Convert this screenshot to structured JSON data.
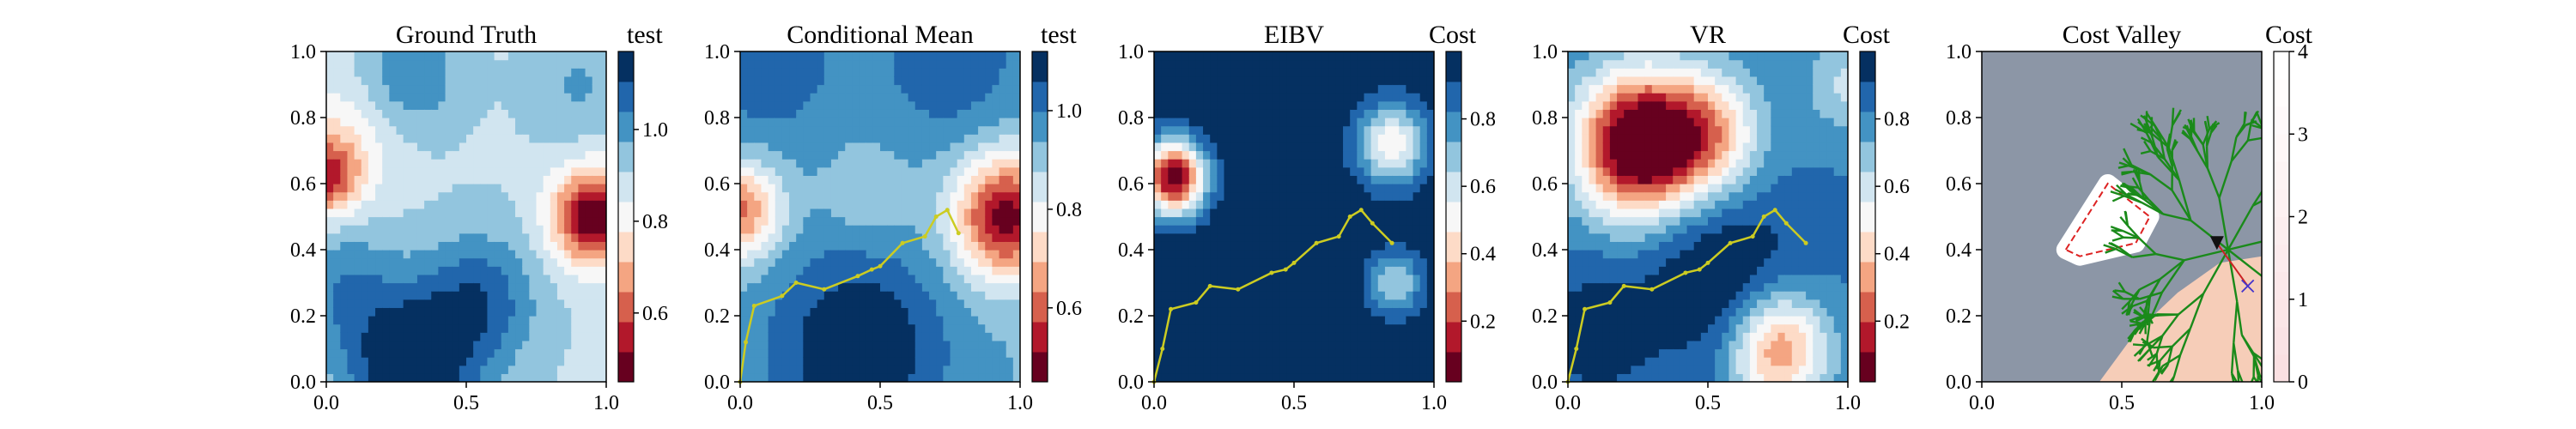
{
  "colors": {
    "diverging_scale": [
      "#67001f",
      "#b2182b",
      "#d6604d",
      "#f4a582",
      "#fddbc7",
      "#f7f7f7",
      "#d1e5f0",
      "#92c5de",
      "#4393c3",
      "#2166ac",
      "#053061"
    ],
    "path_yellow": "#cccc22",
    "tree_green": "#1a8a1a",
    "obstacle_red": "#dd2222",
    "valley_grey": "#8c96a6",
    "valley_peach": "#f6cdb8",
    "heading_marker": "#111111",
    "target_marker": "#4433cc",
    "connector_red": "#cc2222"
  },
  "chart_data": [
    {
      "type": "heatmap",
      "title": "Ground Truth",
      "colorbar_label": "test",
      "colorbar_ticks": [
        "0.6",
        "0.8",
        "1.0"
      ],
      "colorbar_tick_values": [
        0.6,
        0.8,
        1.0
      ],
      "colorbar_range": [
        0.45,
        1.17
      ],
      "x_ticks": [
        "0.0",
        "0.5",
        "1.0"
      ],
      "y_ticks": [
        "0.0",
        "0.2",
        "0.4",
        "0.6",
        "0.8",
        "1.0"
      ],
      "xlim": [
        0,
        1
      ],
      "ylim": [
        0,
        1
      ],
      "field": {
        "base": 0.9,
        "blobs": [
          {
            "x": 0.95,
            "y": 0.5,
            "amp": -0.45,
            "s": 0.1
          },
          {
            "x": 0.0,
            "y": 0.62,
            "amp": -0.3,
            "s": 0.08
          },
          {
            "x": 0.05,
            "y": 0.72,
            "amp": -0.12,
            "s": 0.14
          },
          {
            "x": 0.3,
            "y": 0.05,
            "amp": 0.3,
            "s": 0.16
          },
          {
            "x": 0.55,
            "y": 0.25,
            "amp": 0.18,
            "s": 0.14
          },
          {
            "x": 0.05,
            "y": 0.3,
            "amp": 0.12,
            "s": 0.14
          },
          {
            "x": 0.3,
            "y": 0.93,
            "amp": 0.14,
            "s": 0.12
          },
          {
            "x": 0.9,
            "y": 0.9,
            "amp": 0.08,
            "s": 0.12
          }
        ]
      }
    },
    {
      "type": "heatmap",
      "title": "Conditional Mean",
      "colorbar_label": "test",
      "colorbar_ticks": [
        "0.6",
        "0.8",
        "1.0"
      ],
      "colorbar_tick_values": [
        0.6,
        0.8,
        1.0
      ],
      "colorbar_range": [
        0.45,
        1.12
      ],
      "x_ticks": [
        "0.0",
        "0.5",
        "1.0"
      ],
      "y_ticks": [
        "0.0",
        "0.2",
        "0.4",
        "0.6",
        "0.8",
        "1.0"
      ],
      "xlim": [
        0,
        1
      ],
      "ylim": [
        0,
        1
      ],
      "field": {
        "base": 0.93,
        "blobs": [
          {
            "x": 0.95,
            "y": 0.5,
            "amp": -0.45,
            "s": 0.13
          },
          {
            "x": 0.0,
            "y": 0.52,
            "amp": -0.32,
            "s": 0.1
          },
          {
            "x": 0.42,
            "y": 0.1,
            "amp": 0.2,
            "s": 0.22
          },
          {
            "x": 0.1,
            "y": 0.98,
            "amp": 0.12,
            "s": 0.18
          },
          {
            "x": 0.75,
            "y": 0.98,
            "amp": 0.12,
            "s": 0.18
          },
          {
            "x": 0.45,
            "y": 0.55,
            "amp": -0.06,
            "s": 0.1
          }
        ]
      },
      "path": {
        "x": [
          0.0,
          0.02,
          0.05,
          0.15,
          0.2,
          0.3,
          0.42,
          0.47,
          0.5,
          0.58,
          0.66,
          0.7,
          0.74,
          0.78
        ],
        "y": [
          0.0,
          0.12,
          0.23,
          0.26,
          0.3,
          0.28,
          0.32,
          0.34,
          0.35,
          0.42,
          0.44,
          0.5,
          0.52,
          0.45
        ]
      }
    },
    {
      "type": "heatmap",
      "title": "EIBV",
      "colorbar_label": "Cost",
      "colorbar_ticks": [
        "0.2",
        "0.4",
        "0.6",
        "0.8"
      ],
      "colorbar_tick_values": [
        0.2,
        0.4,
        0.6,
        0.8
      ],
      "colorbar_range": [
        0.02,
        1.0
      ],
      "x_ticks": [
        "0.0",
        "0.5",
        "1.0"
      ],
      "y_ticks": [
        "0.0",
        "0.2",
        "0.4",
        "0.6",
        "0.8",
        "1.0"
      ],
      "xlim": [
        0,
        1
      ],
      "ylim": [
        0,
        1
      ],
      "field": {
        "base": 0.99,
        "blobs": [
          {
            "x": 0.07,
            "y": 0.62,
            "amp": -0.95,
            "s": 0.08
          },
          {
            "x": 0.85,
            "y": 0.72,
            "amp": -0.5,
            "s": 0.09
          },
          {
            "x": 0.86,
            "y": 0.3,
            "amp": -0.35,
            "s": 0.07
          }
        ]
      },
      "path": {
        "x": [
          0.0,
          0.03,
          0.06,
          0.15,
          0.2,
          0.3,
          0.42,
          0.47,
          0.5,
          0.58,
          0.66,
          0.7,
          0.74,
          0.78,
          0.85
        ],
        "y": [
          0.0,
          0.1,
          0.22,
          0.24,
          0.29,
          0.28,
          0.33,
          0.34,
          0.36,
          0.42,
          0.44,
          0.5,
          0.52,
          0.48,
          0.42
        ]
      }
    },
    {
      "type": "heatmap",
      "title": "VR",
      "colorbar_label": "Cost",
      "colorbar_ticks": [
        "0.2",
        "0.4",
        "0.6",
        "0.8"
      ],
      "colorbar_tick_values": [
        0.2,
        0.4,
        0.6,
        0.8
      ],
      "colorbar_range": [
        0.02,
        1.0
      ],
      "x_ticks": [
        "0.0",
        "0.5",
        "1.0"
      ],
      "y_ticks": [
        "0.0",
        "0.2",
        "0.4",
        "0.6",
        "0.8",
        "1.0"
      ],
      "xlim": [
        0,
        1
      ],
      "ylim": [
        0,
        1
      ],
      "field": {
        "base": 0.82,
        "blobs": [
          {
            "x": 0.25,
            "y": 0.72,
            "amp": -0.9,
            "s": 0.15
          },
          {
            "x": 0.5,
            "y": 0.75,
            "amp": -0.45,
            "s": 0.13
          },
          {
            "x": 0.75,
            "y": 0.1,
            "amp": -0.55,
            "s": 0.12
          },
          {
            "x": 0.55,
            "y": 0.32,
            "amp": 0.2,
            "s": 0.2
          },
          {
            "x": 0.1,
            "y": 0.15,
            "amp": 0.15,
            "s": 0.14
          },
          {
            "x": 1.0,
            "y": 0.9,
            "amp": -0.2,
            "s": 0.1
          }
        ]
      },
      "path": {
        "x": [
          0.0,
          0.03,
          0.06,
          0.15,
          0.2,
          0.3,
          0.42,
          0.47,
          0.5,
          0.58,
          0.66,
          0.7,
          0.74,
          0.78,
          0.85
        ],
        "y": [
          0.0,
          0.1,
          0.22,
          0.24,
          0.29,
          0.28,
          0.33,
          0.34,
          0.36,
          0.42,
          0.44,
          0.5,
          0.52,
          0.48,
          0.42
        ]
      }
    },
    {
      "type": "heatmap",
      "title": "Cost Valley",
      "colorbar_label": "Cost",
      "colorbar_ticks": [
        "0",
        "1",
        "2",
        "3",
        "4"
      ],
      "colorbar_tick_values": [
        0,
        1,
        2,
        3,
        4
      ],
      "colorbar_range": [
        0,
        4
      ],
      "x_ticks": [
        "0.0",
        "0.5",
        "1.0"
      ],
      "y_ticks": [
        "0.0",
        "0.2",
        "0.4",
        "0.6",
        "0.8",
        "1.0"
      ],
      "xlim": [
        0,
        1
      ],
      "ylim": [
        0,
        1
      ],
      "obstacle": {
        "x": [
          0.3,
          0.45,
          0.6,
          0.55,
          0.35
        ],
        "y": [
          0.4,
          0.6,
          0.5,
          0.42,
          0.38
        ]
      },
      "current_position": {
        "x": 0.84,
        "y": 0.42
      },
      "target_position": {
        "x": 0.95,
        "y": 0.29
      },
      "tree_root": {
        "x": 0.88,
        "y": 0.4
      }
    }
  ]
}
